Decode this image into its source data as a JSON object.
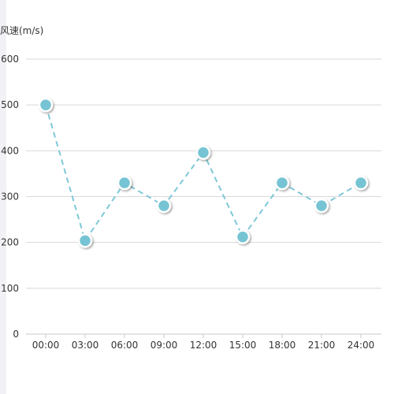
{
  "chart_data": {
    "type": "line",
    "ylabel": "风速(m/s)",
    "categories": [
      "00:00",
      "03:00",
      "06:00",
      "09:00",
      "12:00",
      "15:00",
      "18:00",
      "21:00",
      "24:00"
    ],
    "series": [
      {
        "values": [
          500,
          204,
          330,
          280,
          396,
          212,
          330,
          280,
          330
        ]
      }
    ],
    "ylim": [
      0,
      600
    ],
    "yticks": [
      0,
      100,
      200,
      300,
      400,
      500,
      600
    ],
    "ytick_labels": [
      "0",
      "100",
      "200",
      "300",
      "400",
      "500",
      "600"
    ],
    "grid": true,
    "line_style": "dashed",
    "colors": {
      "line": "#7ec8d8",
      "marker_fill": "#76c4d3",
      "marker_stroke": "#ffffff",
      "grid": "#d8d8d8",
      "axis": "#c8c8c8",
      "text": "#333333",
      "left_strip": "#f1f1f6"
    }
  }
}
